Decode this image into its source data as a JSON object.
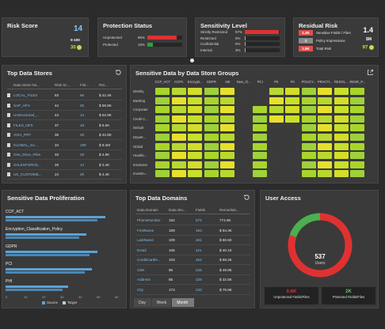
{
  "risk_score": {
    "title": "Risk Score",
    "value": "14",
    "range_label": "0-100",
    "indicator_value": "30"
  },
  "protection_status": {
    "title": "Protection Status",
    "rows": [
      {
        "label": "Unprotected",
        "pct": "85%",
        "fill_pct": 85,
        "color": "#e03131"
      },
      {
        "label": "Protected",
        "pct": "15%",
        "fill_pct": 15,
        "color": "#2f9e44"
      }
    ]
  },
  "sensitivity_level": {
    "title": "Sensitivity Level",
    "rows": [
      {
        "label": "Strictly Restricted",
        "pct": "97%",
        "fill_pct": 97,
        "color": "#e03131"
      },
      {
        "label": "Restricted",
        "pct": "0%",
        "fill_pct": 2,
        "color": "#e8a33a"
      },
      {
        "label": "Confidential",
        "pct": "0%",
        "fill_pct": 2,
        "color": "#e8a33a"
      },
      {
        "label": "Internal",
        "pct": "3%",
        "fill_pct": 3,
        "color": "#e8a33a"
      }
    ]
  },
  "residual_risk": {
    "title": "Residual Risk",
    "rows": [
      {
        "badge": "1.4K",
        "label": "Sensitive Fields / Files",
        "color": "#d9534f"
      },
      {
        "badge": "3",
        "label": "Policy Impressions",
        "color": "#8a8a8a"
      },
      {
        "badge": "1.9K",
        "label": "Total Risk",
        "color": "#d9534f"
      }
    ],
    "side_top": "1.4",
    "side_mid": "$M",
    "side_bottom": "97"
  },
  "top_data_stores": {
    "title": "Top Data Stores",
    "columns": [
      "Data Store Na...",
      "Risk Sc...",
      "Fiel...",
      "Rei..."
    ],
    "rows": [
      [
        "LOCAL_FILES",
        "83",
        "66",
        "$ 42.4K"
      ],
      [
        "SAP_HFX",
        "44",
        "25",
        "$ 59.8K"
      ],
      [
        "Unstructured_...",
        "44",
        "14",
        "$ 52.9K"
      ],
      [
        "FILES_NFS",
        "37",
        "19",
        "$ 6.5K"
      ],
      [
        "VISA_PRT",
        "36",
        "26",
        "$ 42.8K"
      ],
      [
        "GLOBAL_SA...",
        "34",
        "198",
        "$ 9.2M"
      ],
      [
        "One_Drive_Files",
        "33",
        "29",
        "$ 4.8K"
      ],
      [
        "SALESFORCE...",
        "26",
        "14",
        "$ 2.4K"
      ],
      [
        "UK_CUSTOME...",
        "24",
        "26",
        "$ 4.4K"
      ]
    ]
  },
  "heatmap": {
    "title": "Sensitive Data by Data Store Groups",
    "columns": [
      "CCP_ACT",
      "CCPA",
      "Encrypti...",
      "GDPR",
      "HB",
      "New_Cl...",
      "PCI",
      "PII",
      "PII",
      "POLICY...",
      "PRACTI...",
      "RESOL...",
      "RESR_P..."
    ],
    "rows": [
      "Identity",
      "Banking",
      "Corporate",
      "Credit C...",
      "Default",
      "Depart...",
      "Global",
      "Healthc...",
      "Insurance",
      "Investm..."
    ]
  },
  "proliferation": {
    "title": "Sensitive Data Proliferation",
    "items": [
      {
        "label": "CCP_ACT",
        "value": 72
      },
      {
        "label": "Encryption_Classification_Policy",
        "value": 58
      },
      {
        "label": "GDPR",
        "value": 66
      },
      {
        "label": "PCI",
        "value": 62
      },
      {
        "label": "PHI",
        "value": 45
      }
    ],
    "ticks": [
      "0",
      "10",
      "20",
      "30",
      "40",
      "50",
      "60"
    ],
    "legend_source": "Source",
    "legend_target": "Target"
  },
  "top_domains": {
    "title": "Top Data Domains",
    "columns": [
      "Data Domain",
      "Data Sto...",
      "Fields",
      "Remediati..."
    ],
    "rows": [
      [
        "PhoneNumber",
        "152",
        "574",
        "774.9K"
      ],
      [
        "FirstName",
        "109",
        "493",
        "$ 94.3K"
      ],
      [
        "LastName",
        "109",
        "481",
        "$ 60.5K"
      ],
      [
        "Email",
        "105",
        "421",
        "$ 40.1K"
      ],
      [
        "CreditCardN...",
        "103",
        "264",
        "$ 69.2K"
      ],
      [
        "SSN",
        "96",
        "226",
        "$ 49.8K"
      ],
      [
        "Address",
        "85",
        "228",
        "$ 32.5K"
      ],
      [
        "City",
        "173",
        "233",
        "$ 79.9K"
      ]
    ],
    "tabs": [
      "Day",
      "Week",
      "Month"
    ],
    "active_tab": "Month"
  },
  "user_access": {
    "title": "User Access",
    "center_value": "537",
    "center_label": "Users",
    "red_fraction": 0.8,
    "left_value": "0.6K",
    "left_label": "Unprotected Fields/Files",
    "right_value": "2K",
    "right_label": "Protected Fields/Files"
  },
  "colors": {
    "accent_blue": "#5ba3d6",
    "danger": "#e03131",
    "ok": "#2f9e44",
    "panel": "#3a3a3a"
  }
}
